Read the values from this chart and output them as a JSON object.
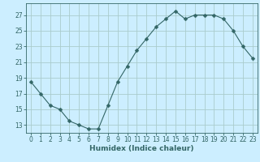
{
  "x": [
    0,
    1,
    2,
    3,
    4,
    5,
    6,
    7,
    8,
    9,
    10,
    11,
    12,
    13,
    14,
    15,
    16,
    17,
    18,
    19,
    20,
    21,
    22,
    23
  ],
  "y": [
    18.5,
    17.0,
    15.5,
    15.0,
    13.5,
    13.0,
    12.5,
    12.5,
    15.5,
    18.5,
    20.5,
    22.5,
    24.0,
    25.5,
    26.5,
    27.5,
    26.5,
    27.0,
    27.0,
    27.0,
    26.5,
    25.0,
    23.0,
    21.5
  ],
  "line_color": "#336666",
  "marker": "D",
  "marker_size": 2.5,
  "bg_color": "#cceeff",
  "grid_color": "#aacccc",
  "xlabel": "Humidex (Indice chaleur)",
  "yticks": [
    13,
    15,
    17,
    19,
    21,
    23,
    25,
    27
  ],
  "xticks": [
    0,
    1,
    2,
    3,
    4,
    5,
    6,
    7,
    8,
    9,
    10,
    11,
    12,
    13,
    14,
    15,
    16,
    17,
    18,
    19,
    20,
    21,
    22,
    23
  ],
  "ylim": [
    12.0,
    28.5
  ],
  "xlim": [
    -0.5,
    23.5
  ],
  "tick_fontsize": 5.5,
  "label_fontsize": 6.5
}
